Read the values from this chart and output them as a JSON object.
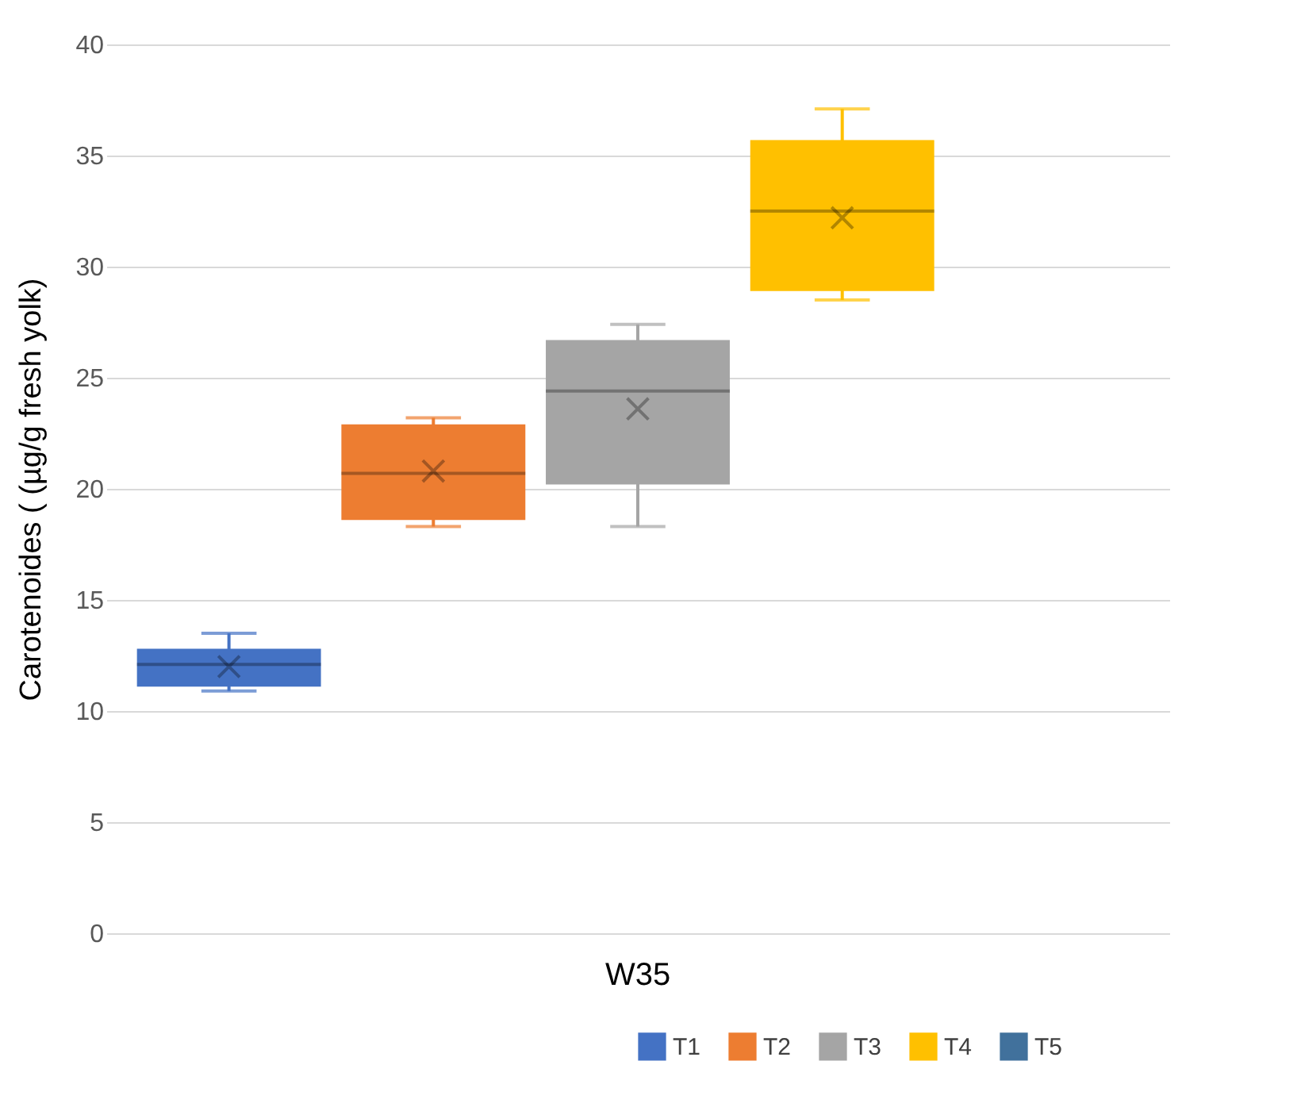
{
  "chart_data": {
    "type": "box",
    "ylabel": "Carotenoides ( (µg/g fresh  yolk)",
    "categories": [
      "W35"
    ],
    "ylim": [
      0,
      40
    ],
    "yticks": [
      0,
      5,
      10,
      15,
      20,
      25,
      30,
      35,
      40
    ],
    "grid": "y",
    "legend": "bottom",
    "marker": "cross",
    "series": [
      {
        "name": "T1",
        "color": "#4472c4",
        "boxes": [
          {
            "low": 10.9,
            "q1": 11.1,
            "median": 12.1,
            "q3": 12.8,
            "high": 13.5,
            "mean": 12.0
          }
        ]
      },
      {
        "name": "T2",
        "color": "#ed7d31",
        "boxes": [
          {
            "low": 18.3,
            "q1": 18.6,
            "median": 20.7,
            "q3": 22.9,
            "high": 23.2,
            "mean": 20.8
          }
        ]
      },
      {
        "name": "T3",
        "color": "#a5a5a5",
        "boxes": [
          {
            "low": 18.3,
            "q1": 20.2,
            "median": 24.4,
            "q3": 26.7,
            "high": 27.4,
            "mean": 23.6
          }
        ]
      },
      {
        "name": "T4",
        "color": "#ffc000",
        "boxes": [
          {
            "low": 28.5,
            "q1": 28.9,
            "median": 32.5,
            "q3": 35.7,
            "high": 37.1,
            "mean": 32.2
          }
        ]
      },
      {
        "name": "T5",
        "color": "#41719c",
        "boxes": [
          null
        ]
      }
    ]
  }
}
